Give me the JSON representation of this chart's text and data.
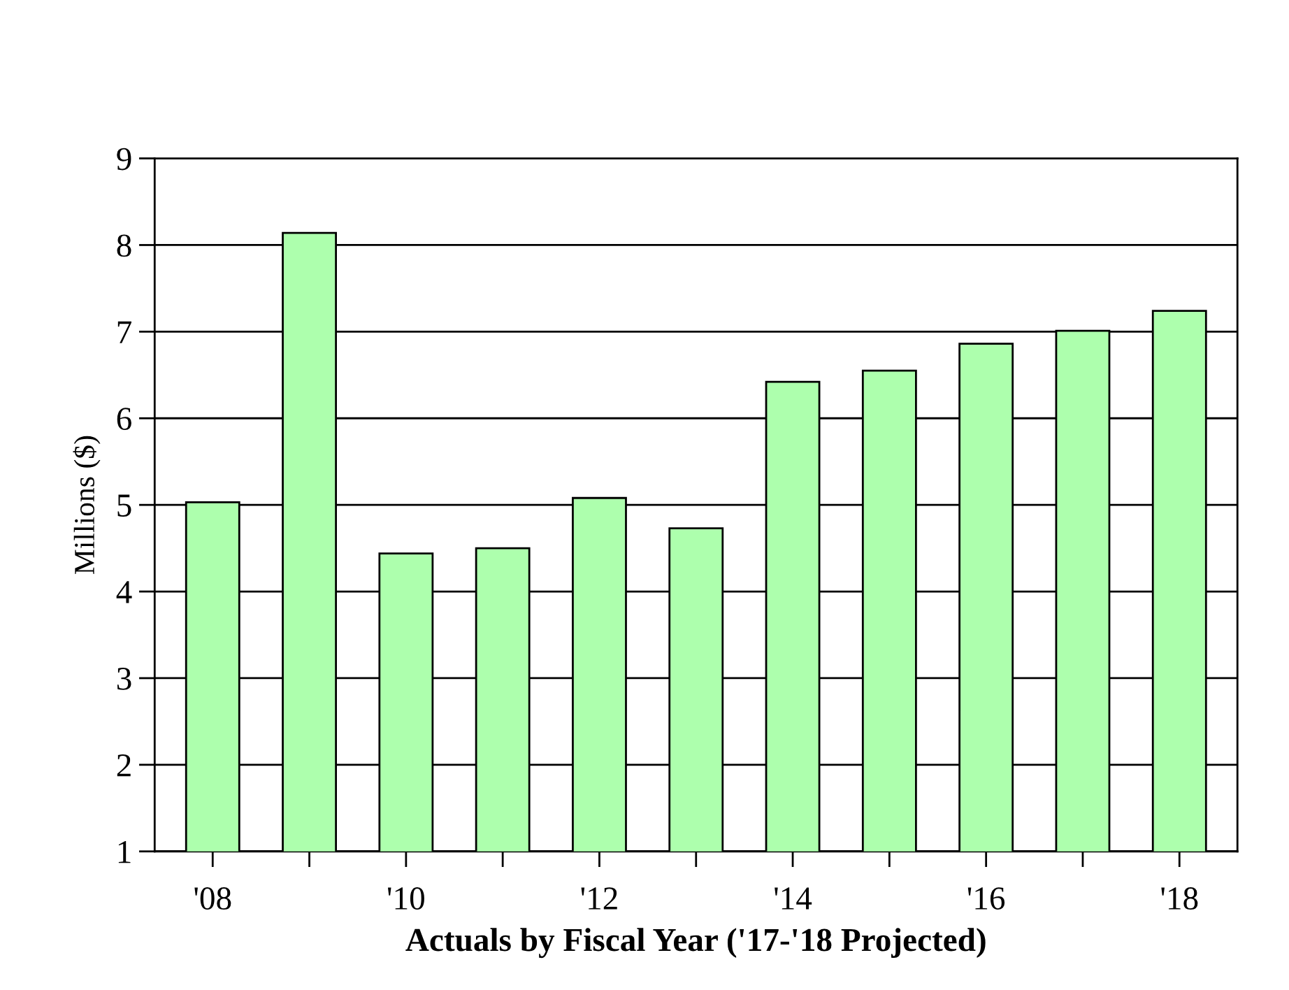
{
  "chart_data": {
    "type": "bar",
    "xlabel": "Actuals by Fiscal Year ('17-'18 Projected)",
    "ylabel": "Millions ($)",
    "categories": [
      "'08",
      null,
      "'10",
      null,
      "'12",
      null,
      "'14",
      null,
      "'16",
      null,
      "'18"
    ],
    "values": [
      5.03,
      8.14,
      4.44,
      4.5,
      5.08,
      4.73,
      6.42,
      6.55,
      6.86,
      7.01,
      7.24
    ],
    "color": "#adffad",
    "ylim": [
      1,
      9
    ],
    "yticks": [
      1,
      2,
      3,
      4,
      5,
      6,
      7,
      8,
      9
    ],
    "grid": "y"
  }
}
